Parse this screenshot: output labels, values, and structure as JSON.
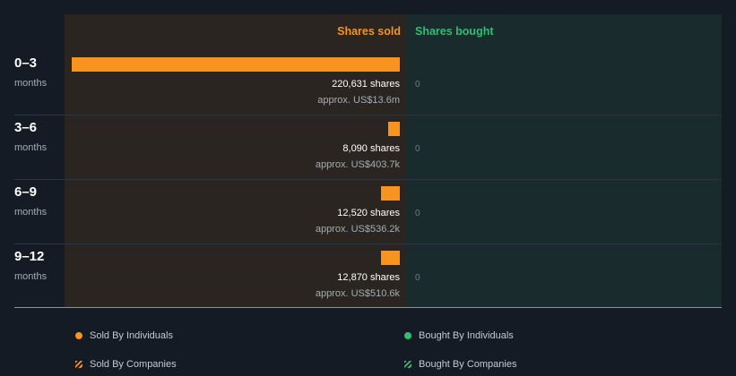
{
  "chart_data": {
    "type": "bar",
    "orientation": "horizontal",
    "columns": [
      "Shares sold",
      "Shares bought"
    ],
    "categories": [
      {
        "period": "0–3",
        "unit": "months"
      },
      {
        "period": "3–6",
        "unit": "months"
      },
      {
        "period": "6–9",
        "unit": "months"
      },
      {
        "period": "9–12",
        "unit": "months"
      }
    ],
    "sold": {
      "values": [
        220631,
        8090,
        12520,
        12870
      ],
      "shares_labels": [
        "220,631 shares",
        "8,090 shares",
        "12,520 shares",
        "12,870 shares"
      ],
      "approx_labels": [
        "approx. US$13.6m",
        "approx. US$403.7k",
        "approx. US$536.2k",
        "approx. US$510.6k"
      ]
    },
    "bought": {
      "values": [
        0,
        0,
        0,
        0
      ],
      "labels": [
        "0",
        "0",
        "0",
        "0"
      ]
    },
    "legend": [
      {
        "label": "Sold By Individuals",
        "style": "dot",
        "color": "#f7931e"
      },
      {
        "label": "Bought By Individuals",
        "style": "dot",
        "color": "#2fbf71"
      },
      {
        "label": "Sold By Companies",
        "style": "hatch",
        "color": "#f7931e"
      },
      {
        "label": "Bought By Companies",
        "style": "hatch",
        "color": "#2fbf71"
      }
    ],
    "colors": {
      "sold": "#f7931e",
      "bought": "#2fbf71"
    }
  }
}
